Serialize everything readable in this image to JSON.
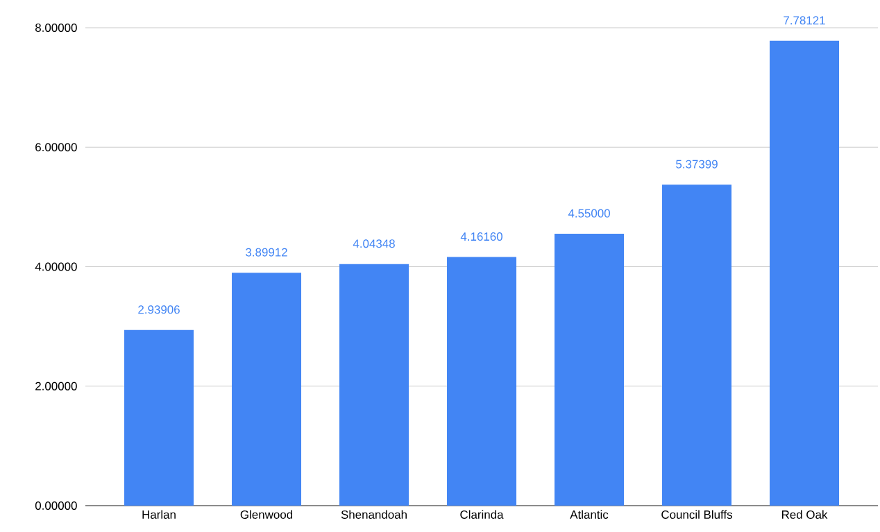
{
  "chart_data": {
    "type": "bar",
    "categories": [
      "Harlan",
      "Glenwood",
      "Shenandoah",
      "Clarinda",
      "Atlantic",
      "Council Bluffs",
      "Red Oak"
    ],
    "values": [
      2.93906,
      3.89912,
      4.04348,
      4.1616,
      4.55,
      5.37399,
      7.78121
    ],
    "value_labels": [
      "2.93906",
      "3.89912",
      "4.04348",
      "4.16160",
      "4.55000",
      "5.37399",
      "7.78121"
    ],
    "color": "#4285f4",
    "ylim": [
      0,
      8
    ],
    "yticks": [
      {
        "value": 0,
        "label": "0.00000"
      },
      {
        "value": 2,
        "label": "2.00000"
      },
      {
        "value": 4,
        "label": "4.00000"
      },
      {
        "value": 6,
        "label": "6.00000"
      },
      {
        "value": 8,
        "label": "8.00000"
      }
    ],
    "grid": "y"
  }
}
